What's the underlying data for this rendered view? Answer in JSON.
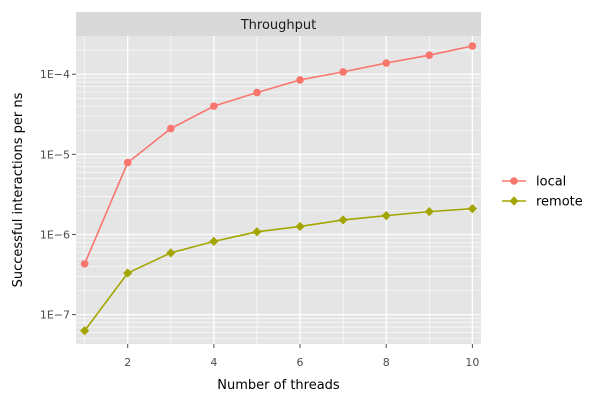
{
  "chart_data": {
    "type": "line",
    "title": "",
    "facet_label": "Throughput",
    "xlabel": "Number of threads",
    "ylabel": "Successful interactions per ns",
    "x": [
      1,
      2,
      3,
      4,
      5,
      6,
      7,
      8,
      9,
      10
    ],
    "xlim": [
      0.8,
      10.2
    ],
    "x_ticks": [
      2,
      4,
      6,
      8,
      10
    ],
    "x_tick_labels": [
      "2",
      "4",
      "6",
      "8",
      "10"
    ],
    "y_scale": "log10",
    "ylim": [
      4.3e-08,
      0.0003
    ],
    "y_ticks": [
      1e-07,
      1e-06,
      1e-05,
      0.0001
    ],
    "y_tick_labels": [
      "1E−7",
      "1E−6",
      "1E−5",
      "1E−4"
    ],
    "grid": true,
    "legend": {
      "placement": "right"
    },
    "series": [
      {
        "name": "local",
        "color": "#F8766D",
        "marker": "circle",
        "values": [
          4.3e-07,
          7.9e-06,
          2.1e-05,
          4e-05,
          5.9e-05,
          8.5e-05,
          0.000107,
          0.000138,
          0.000173,
          0.000225
        ]
      },
      {
        "name": "remote",
        "color": "#A3A500",
        "marker": "diamond",
        "values": [
          6.3e-08,
          3.3e-07,
          5.9e-07,
          8.2e-07,
          1.08e-06,
          1.26e-06,
          1.52e-06,
          1.72e-06,
          1.93e-06,
          2.1e-06
        ]
      }
    ]
  }
}
